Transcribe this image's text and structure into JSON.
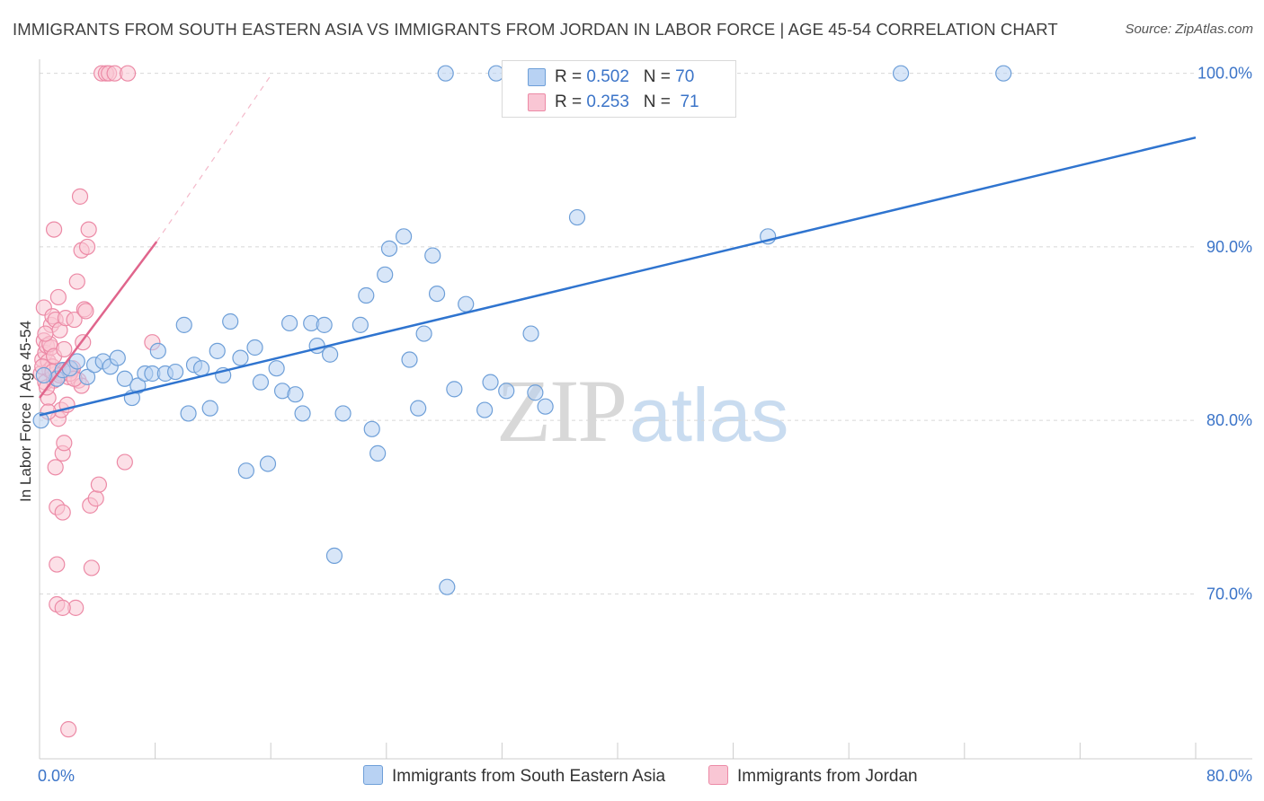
{
  "header": {
    "title": "IMMIGRANTS FROM SOUTH EASTERN ASIA VS IMMIGRANTS FROM JORDAN IN LABOR FORCE | AGE 45-54 CORRELATION CHART",
    "source": "Source: ZipAtlas.com"
  },
  "legend": {
    "row1": {
      "r_label": "R =",
      "r_value": "0.502",
      "n_label": "N =",
      "n_value": "70"
    },
    "row2": {
      "r_label": "R =",
      "r_value": "0.253",
      "n_label": "N =",
      "n_value": "71"
    }
  },
  "watermark": {
    "zip": "ZIP",
    "atlas": "atlas"
  },
  "colors": {
    "blue_fill": "#b8d2f3",
    "blue_stroke": "#6e9fd8",
    "blue_line": "#2f74cf",
    "pink_fill": "#f9c6d4",
    "pink_stroke": "#ec8aa6",
    "pink_line": "#e0658c",
    "tick_color": "#3b74c8"
  },
  "chart_data": {
    "type": "scatter",
    "title": "IMMIGRANTS FROM SOUTH EASTERN ASIA VS IMMIGRANTS FROM JORDAN IN LABOR FORCE | AGE 45-54 CORRELATION CHART",
    "xlabel": "",
    "ylabel": "In Labor Force | Age 45-54",
    "xlim": [
      0,
      80
    ],
    "ylim": [
      60.5,
      100.5
    ],
    "x_tick_labels": [
      "0.0%",
      "80.0%"
    ],
    "y_ticks": [
      70,
      80,
      90,
      100
    ],
    "y_tick_labels": [
      "70.0%",
      "80.0%",
      "90.0%",
      "100.0%"
    ],
    "grid": true,
    "series": [
      {
        "name": "Immigrants from South Eastern Asia",
        "color": "#6e9fd8",
        "r": 0.502,
        "n": 70,
        "trend": {
          "x": [
            0,
            80
          ],
          "y": [
            80.3,
            96.3
          ]
        },
        "points": [
          [
            0.1,
            80.0
          ],
          [
            1.2,
            82.4
          ],
          [
            1.6,
            82.9
          ],
          [
            2.1,
            83.0
          ],
          [
            2.6,
            83.4
          ],
          [
            3.3,
            82.5
          ],
          [
            3.8,
            83.2
          ],
          [
            4.4,
            83.4
          ],
          [
            4.9,
            83.1
          ],
          [
            5.4,
            83.6
          ],
          [
            5.9,
            82.4
          ],
          [
            6.4,
            81.3
          ],
          [
            6.8,
            82.0
          ],
          [
            7.3,
            82.7
          ],
          [
            7.8,
            82.7
          ],
          [
            8.2,
            84.0
          ],
          [
            8.7,
            82.7
          ],
          [
            9.4,
            82.8
          ],
          [
            10.0,
            85.5
          ],
          [
            10.3,
            80.4
          ],
          [
            10.7,
            83.2
          ],
          [
            11.2,
            83.0
          ],
          [
            11.8,
            80.7
          ],
          [
            12.3,
            84.0
          ],
          [
            12.7,
            82.6
          ],
          [
            13.2,
            85.7
          ],
          [
            13.9,
            83.6
          ],
          [
            14.3,
            77.1
          ],
          [
            14.9,
            84.2
          ],
          [
            15.3,
            82.2
          ],
          [
            15.8,
            77.5
          ],
          [
            16.4,
            83.0
          ],
          [
            16.8,
            81.7
          ],
          [
            17.3,
            85.6
          ],
          [
            17.7,
            81.5
          ],
          [
            18.2,
            80.4
          ],
          [
            18.8,
            85.6
          ],
          [
            19.2,
            84.3
          ],
          [
            19.7,
            85.5
          ],
          [
            20.1,
            83.8
          ],
          [
            20.4,
            72.2
          ],
          [
            21.0,
            80.4
          ],
          [
            22.2,
            85.5
          ],
          [
            22.6,
            87.2
          ],
          [
            23.0,
            79.5
          ],
          [
            23.4,
            78.1
          ],
          [
            23.9,
            88.4
          ],
          [
            24.2,
            89.9
          ],
          [
            25.2,
            90.6
          ],
          [
            25.6,
            83.5
          ],
          [
            26.2,
            80.7
          ],
          [
            26.6,
            85.0
          ],
          [
            27.2,
            89.5
          ],
          [
            27.5,
            87.3
          ],
          [
            28.2,
            70.4
          ],
          [
            28.7,
            81.8
          ],
          [
            29.5,
            86.7
          ],
          [
            30.8,
            80.6
          ],
          [
            31.2,
            82.2
          ],
          [
            32.3,
            81.7
          ],
          [
            34.0,
            85.0
          ],
          [
            34.3,
            81.6
          ],
          [
            35.0,
            80.8
          ],
          [
            37.2,
            91.7
          ],
          [
            50.4,
            90.6
          ],
          [
            28.1,
            100.0
          ],
          [
            31.6,
            100.0
          ],
          [
            59.6,
            100.0
          ],
          [
            66.7,
            100.0
          ],
          [
            0.3,
            82.6
          ]
        ]
      },
      {
        "name": "Immigrants from Jordan",
        "color": "#ec8aa6",
        "r": 0.253,
        "n": 71,
        "trend": {
          "x": [
            0,
            8.1
          ],
          "y": [
            81.3,
            90.3
          ]
        },
        "trend_ext": {
          "x": [
            8.1,
            16.1
          ],
          "y": [
            90.3,
            100.0
          ]
        },
        "points": [
          [
            0.1,
            82.7
          ],
          [
            0.2,
            83.5
          ],
          [
            0.3,
            84.6
          ],
          [
            0.3,
            86.5
          ],
          [
            0.4,
            83.9
          ],
          [
            0.4,
            82.2
          ],
          [
            0.5,
            84.3
          ],
          [
            0.6,
            83.4
          ],
          [
            0.6,
            81.3
          ],
          [
            0.7,
            82.9
          ],
          [
            0.8,
            84.2
          ],
          [
            0.8,
            85.5
          ],
          [
            0.9,
            86.0
          ],
          [
            0.9,
            83.1
          ],
          [
            1.0,
            82.3
          ],
          [
            1.0,
            91.0
          ],
          [
            1.1,
            85.8
          ],
          [
            1.1,
            77.3
          ],
          [
            1.2,
            75.0
          ],
          [
            1.2,
            71.7
          ],
          [
            1.3,
            80.1
          ],
          [
            1.3,
            87.1
          ],
          [
            1.4,
            85.2
          ],
          [
            1.5,
            80.6
          ],
          [
            1.5,
            82.7
          ],
          [
            1.6,
            74.7
          ],
          [
            1.6,
            78.1
          ],
          [
            1.7,
            78.7
          ],
          [
            1.8,
            82.9
          ],
          [
            1.8,
            85.9
          ],
          [
            1.9,
            80.9
          ],
          [
            2.0,
            82.5
          ],
          [
            2.0,
            62.2
          ],
          [
            2.2,
            82.9
          ],
          [
            2.3,
            83.0
          ],
          [
            2.4,
            85.8
          ],
          [
            2.5,
            69.2
          ],
          [
            2.6,
            88.0
          ],
          [
            2.7,
            82.3
          ],
          [
            2.8,
            92.9
          ],
          [
            2.9,
            89.8
          ],
          [
            3.0,
            84.5
          ],
          [
            3.1,
            86.4
          ],
          [
            3.3,
            90.0
          ],
          [
            3.4,
            91.0
          ],
          [
            3.5,
            75.1
          ],
          [
            3.6,
            71.5
          ],
          [
            3.9,
            75.5
          ],
          [
            4.1,
            76.3
          ],
          [
            4.3,
            100.0
          ],
          [
            4.6,
            100.0
          ],
          [
            4.8,
            100.0
          ],
          [
            5.2,
            100.0
          ],
          [
            6.1,
            100.0
          ],
          [
            5.9,
            77.6
          ],
          [
            7.8,
            84.5
          ],
          [
            1.2,
            69.4
          ],
          [
            1.6,
            69.2
          ],
          [
            0.2,
            83.1
          ],
          [
            0.5,
            81.9
          ],
          [
            0.7,
            84.4
          ],
          [
            0.9,
            82.8
          ],
          [
            1.4,
            82.6
          ],
          [
            2.1,
            82.7
          ],
          [
            3.2,
            86.3
          ],
          [
            0.4,
            85.0
          ],
          [
            1.0,
            83.7
          ],
          [
            1.7,
            84.1
          ],
          [
            2.9,
            82.0
          ],
          [
            0.6,
            80.5
          ],
          [
            2.4,
            82.4
          ]
        ]
      }
    ],
    "legend_position": "top-center"
  },
  "bottom_legend": {
    "series1": "Immigrants from South Eastern Asia",
    "series2": "Immigrants from Jordan"
  }
}
